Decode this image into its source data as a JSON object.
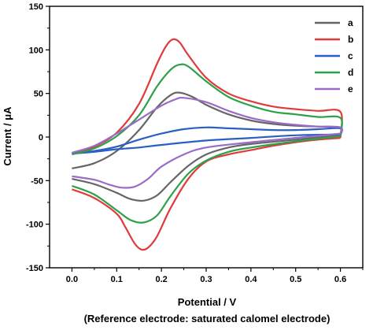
{
  "chart_data": {
    "type": "line",
    "xlabel": "Potential / V",
    "xlabel_note": "(Reference electrode: saturated calomel electrode)",
    "ylabel": "Current / μA",
    "xlim": [
      -0.05,
      0.65
    ],
    "ylim": [
      -150,
      150
    ],
    "x_ticks": [
      0.0,
      0.1,
      0.2,
      0.3,
      0.4,
      0.5,
      0.6
    ],
    "x_tick_labels": [
      "0.0",
      "0.1",
      "0.2",
      "0.3",
      "0.4",
      "0.5",
      "0.6"
    ],
    "y_ticks": [
      -150,
      -100,
      -50,
      0,
      50,
      100,
      150
    ],
    "y_tick_labels": [
      "-150",
      "-100",
      "-50",
      "0",
      "50",
      "100",
      "150"
    ],
    "grid": false,
    "legend_position": "top-right",
    "series": [
      {
        "name": "a",
        "color": "#666666",
        "forward": [
          [
            0.0,
            -36
          ],
          [
            0.05,
            -30
          ],
          [
            0.1,
            -16
          ],
          [
            0.15,
            8
          ],
          [
            0.19,
            34
          ],
          [
            0.22,
            48
          ],
          [
            0.24,
            51
          ],
          [
            0.27,
            46
          ],
          [
            0.3,
            37
          ],
          [
            0.35,
            26
          ],
          [
            0.4,
            19
          ],
          [
            0.45,
            15
          ],
          [
            0.5,
            13
          ],
          [
            0.55,
            12
          ],
          [
            0.6,
            11
          ],
          [
            0.6,
            2
          ]
        ],
        "reverse": [
          [
            0.6,
            2
          ],
          [
            0.5,
            -3
          ],
          [
            0.4,
            -8
          ],
          [
            0.35,
            -12
          ],
          [
            0.3,
            -20
          ],
          [
            0.26,
            -33
          ],
          [
            0.22,
            -52
          ],
          [
            0.19,
            -67
          ],
          [
            0.16,
            -73
          ],
          [
            0.13,
            -71
          ],
          [
            0.1,
            -64
          ],
          [
            0.05,
            -54
          ],
          [
            0.0,
            -48
          ]
        ]
      },
      {
        "name": "b",
        "color": "#e03a3a",
        "forward": [
          [
            0.0,
            -19
          ],
          [
            0.05,
            -11
          ],
          [
            0.1,
            5
          ],
          [
            0.15,
            38
          ],
          [
            0.19,
            84
          ],
          [
            0.21,
            104
          ],
          [
            0.225,
            112
          ],
          [
            0.24,
            109
          ],
          [
            0.26,
            94
          ],
          [
            0.3,
            68
          ],
          [
            0.35,
            50
          ],
          [
            0.4,
            41
          ],
          [
            0.45,
            35
          ],
          [
            0.5,
            32
          ],
          [
            0.55,
            30
          ],
          [
            0.6,
            29
          ],
          [
            0.6,
            -1
          ]
        ],
        "reverse": [
          [
            0.6,
            -1
          ],
          [
            0.55,
            -3
          ],
          [
            0.5,
            -6
          ],
          [
            0.45,
            -10
          ],
          [
            0.4,
            -15
          ],
          [
            0.35,
            -20
          ],
          [
            0.3,
            -28
          ],
          [
            0.26,
            -48
          ],
          [
            0.22,
            -82
          ],
          [
            0.19,
            -114
          ],
          [
            0.17,
            -127
          ],
          [
            0.155,
            -129
          ],
          [
            0.14,
            -122
          ],
          [
            0.12,
            -104
          ],
          [
            0.1,
            -88
          ],
          [
            0.05,
            -70
          ],
          [
            0.0,
            -60
          ]
        ]
      },
      {
        "name": "c",
        "color": "#2a5fc4",
        "forward": [
          [
            0.0,
            -19
          ],
          [
            0.05,
            -16
          ],
          [
            0.1,
            -11
          ],
          [
            0.15,
            -3
          ],
          [
            0.2,
            4
          ],
          [
            0.25,
            9
          ],
          [
            0.3,
            11
          ],
          [
            0.35,
            10
          ],
          [
            0.4,
            9
          ],
          [
            0.45,
            8
          ],
          [
            0.5,
            8
          ],
          [
            0.55,
            9
          ],
          [
            0.6,
            10
          ],
          [
            0.6,
            3
          ]
        ],
        "reverse": [
          [
            0.6,
            3
          ],
          [
            0.5,
            2
          ],
          [
            0.4,
            -1
          ],
          [
            0.3,
            -4
          ],
          [
            0.2,
            -9
          ],
          [
            0.15,
            -12
          ],
          [
            0.1,
            -14
          ],
          [
            0.05,
            -17
          ],
          [
            0.0,
            -19
          ]
        ]
      },
      {
        "name": "d",
        "color": "#2ea04a",
        "forward": [
          [
            0.0,
            -20
          ],
          [
            0.05,
            -13
          ],
          [
            0.1,
            1
          ],
          [
            0.15,
            25
          ],
          [
            0.19,
            58
          ],
          [
            0.22,
            77
          ],
          [
            0.24,
            83
          ],
          [
            0.26,
            81
          ],
          [
            0.3,
            64
          ],
          [
            0.35,
            46
          ],
          [
            0.4,
            36
          ],
          [
            0.45,
            29
          ],
          [
            0.5,
            26
          ],
          [
            0.55,
            23
          ],
          [
            0.6,
            22
          ],
          [
            0.6,
            1
          ]
        ],
        "reverse": [
          [
            0.6,
            1
          ],
          [
            0.5,
            -5
          ],
          [
            0.4,
            -12
          ],
          [
            0.35,
            -17
          ],
          [
            0.3,
            -27
          ],
          [
            0.26,
            -42
          ],
          [
            0.22,
            -68
          ],
          [
            0.19,
            -90
          ],
          [
            0.16,
            -98
          ],
          [
            0.13,
            -95
          ],
          [
            0.1,
            -84
          ],
          [
            0.05,
            -66
          ],
          [
            0.0,
            -56
          ]
        ]
      },
      {
        "name": "e",
        "color": "#9a6bc7",
        "forward": [
          [
            0.0,
            -18
          ],
          [
            0.05,
            -10
          ],
          [
            0.1,
            4
          ],
          [
            0.15,
            20
          ],
          [
            0.2,
            36
          ],
          [
            0.23,
            43
          ],
          [
            0.25,
            45
          ],
          [
            0.3,
            40
          ],
          [
            0.35,
            30
          ],
          [
            0.4,
            22
          ],
          [
            0.45,
            17
          ],
          [
            0.5,
            14
          ],
          [
            0.55,
            12
          ],
          [
            0.6,
            11
          ],
          [
            0.6,
            4
          ]
        ],
        "reverse": [
          [
            0.6,
            4
          ],
          [
            0.5,
            -1
          ],
          [
            0.4,
            -6
          ],
          [
            0.3,
            -12
          ],
          [
            0.25,
            -20
          ],
          [
            0.2,
            -34
          ],
          [
            0.17,
            -48
          ],
          [
            0.14,
            -57
          ],
          [
            0.11,
            -58
          ],
          [
            0.08,
            -54
          ],
          [
            0.05,
            -49
          ],
          [
            0.0,
            -45
          ]
        ]
      }
    ]
  }
}
